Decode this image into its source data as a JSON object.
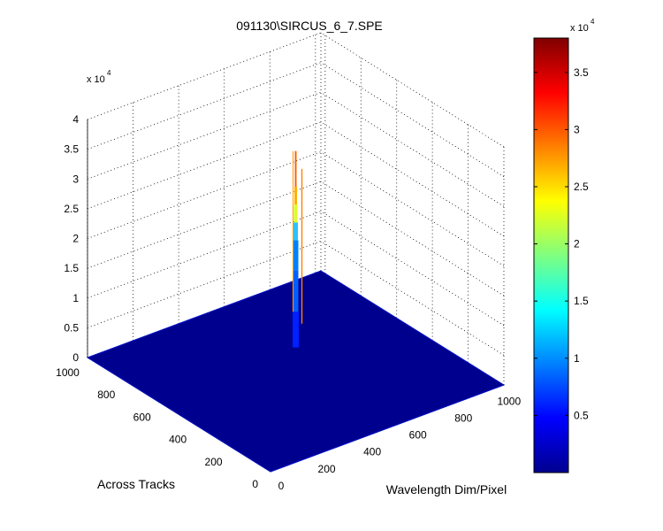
{
  "chart_data": {
    "type": "surface",
    "title": "091130\\SIRCUS_6_7.SPE",
    "xlabel": "Wavelength Dim/Pixel",
    "ylabel": "Across Tracks",
    "zlabel": "",
    "x_ticks": [
      "0",
      "200",
      "400",
      "600",
      "800",
      "1000"
    ],
    "y_ticks": [
      "0",
      "200",
      "400",
      "600",
      "800",
      "1000"
    ],
    "z_ticks": [
      "0",
      "0.5",
      "1",
      "1.5",
      "2",
      "2.5",
      "3",
      "3.5",
      "4"
    ],
    "z_exponent_prefix": "x 10",
    "z_exponent_power": "4",
    "xlim": [
      0,
      1024
    ],
    "ylim": [
      0,
      1024
    ],
    "zlim": [
      0,
      40000
    ],
    "grid": true,
    "colormap": "jet",
    "baseline_z": 0,
    "peak": {
      "x": 512,
      "y": 512,
      "z_max": 37000
    },
    "colorbar": {
      "ticks": [
        "0.5",
        "1",
        "1.5",
        "2",
        "2.5",
        "3",
        "3.5"
      ],
      "exponent_prefix": "x 10",
      "exponent_power": "4",
      "lim": [
        0,
        38000
      ]
    },
    "colors": {
      "surface_floor": "#00008f",
      "edge_highlight": "#0010c8",
      "grid": "#000000"
    }
  }
}
